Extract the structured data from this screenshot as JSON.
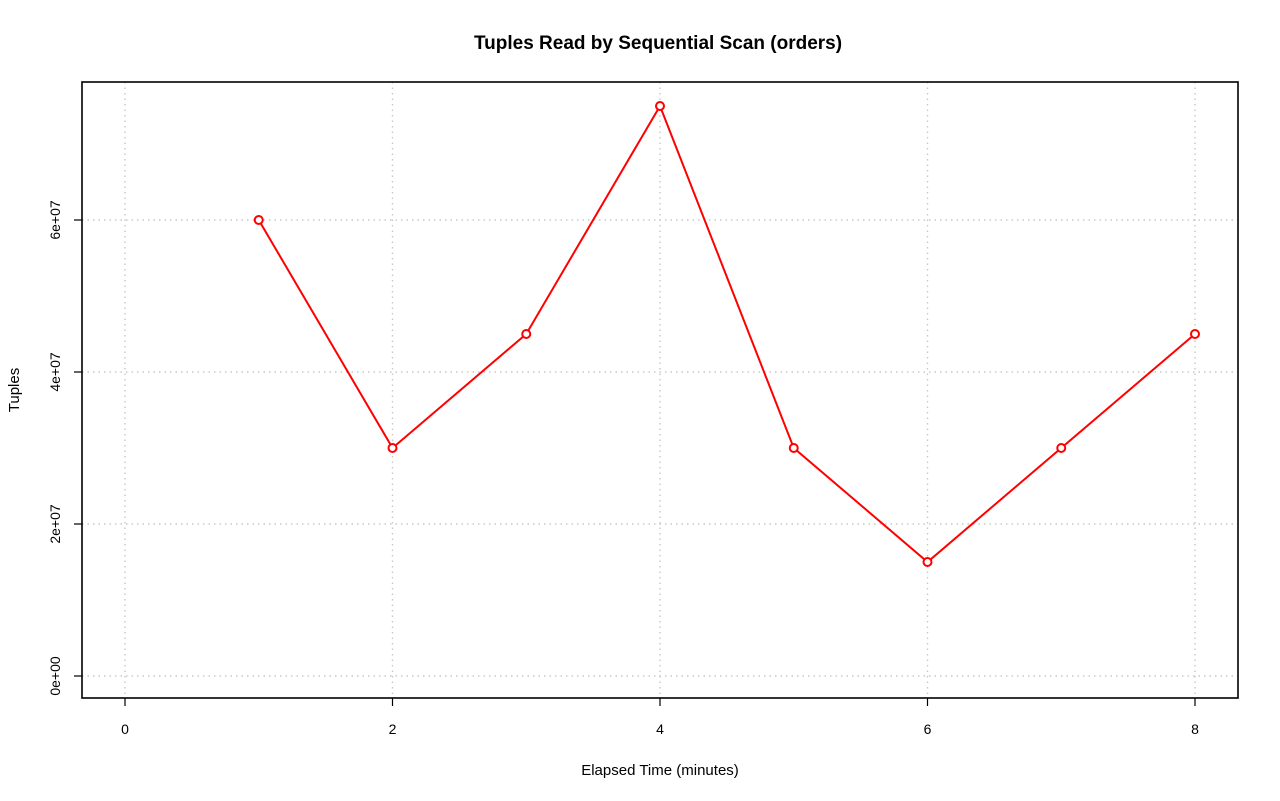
{
  "chart_data": {
    "type": "line",
    "title": "Tuples Read by Sequential Scan (orders)",
    "xlabel": "Elapsed Time (minutes)",
    "ylabel": "Tuples",
    "xlim": [
      0,
      8
    ],
    "ylim": [
      0,
      75000000
    ],
    "x_ticks": [
      0,
      2,
      4,
      6,
      8
    ],
    "x_tick_labels": [
      "0",
      "2",
      "4",
      "6",
      "8"
    ],
    "y_ticks": [
      0,
      20000000,
      40000000,
      60000000
    ],
    "y_tick_labels": [
      "0e+00",
      "2e+07",
      "4e+07",
      "6e+07"
    ],
    "grid": true,
    "series": [
      {
        "x": [
          1,
          2,
          3,
          4,
          5,
          6,
          7,
          8
        ],
        "values": [
          60000000,
          30000000,
          45000000,
          75000000,
          30000000,
          15000000,
          30000000,
          45000000
        ],
        "color": "#ff0000",
        "marker": "open-circle"
      }
    ]
  }
}
